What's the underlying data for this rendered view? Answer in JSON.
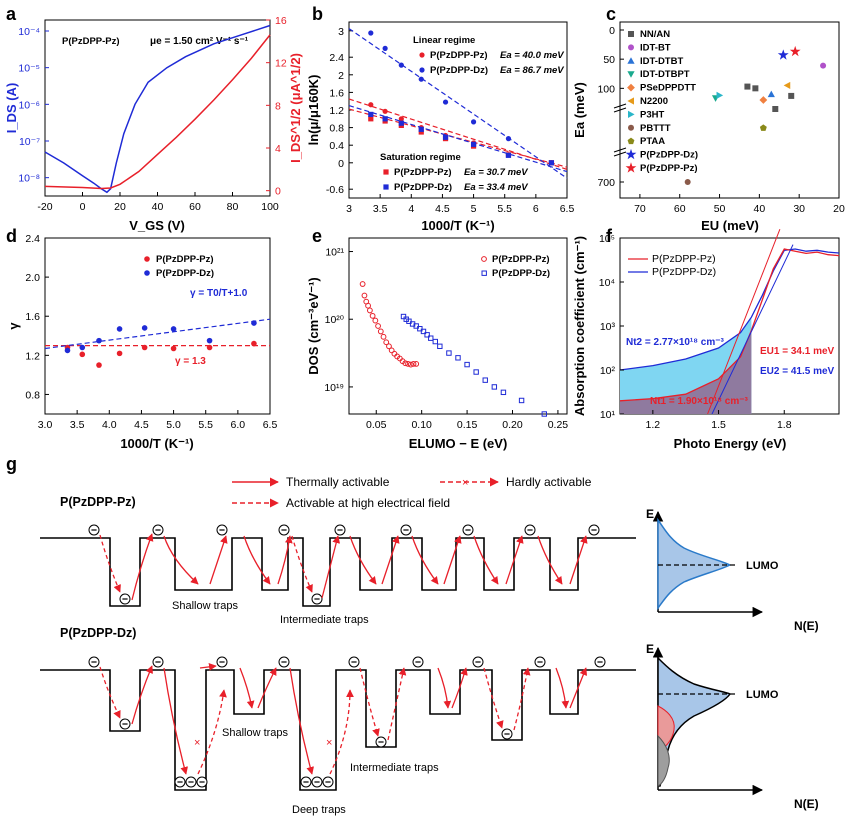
{
  "colors": {
    "red": "#e8202a",
    "blue": "#1f2bd6",
    "black": "#000000",
    "fill_blue": "#a8c6e8",
    "fill_red": "#e99a9a",
    "fill_gray": "#9e9e9e",
    "fill_cyan": "#7fd6f2",
    "fill_purple": "#8f7a9f"
  },
  "panels": {
    "a": {
      "label": "a",
      "title": "P(PzDPP-Pz)",
      "mobility": "μe = 1.50 cm² V⁻¹ s⁻¹",
      "xlabel": "V_GS (V)",
      "ylabel_left": "I_DS (A)",
      "ylabel_right": "I_DS^1/2 (μA^1/2)",
      "xticks": [
        "-20",
        "0",
        "20",
        "40",
        "60",
        "80",
        "100"
      ],
      "yticks_left": [
        "10⁻⁸",
        "10⁻⁷",
        "10⁻⁶",
        "10⁻⁵",
        "10⁻⁴"
      ],
      "yticks_right": [
        "0",
        "4",
        "8",
        "12",
        "16"
      ]
    },
    "b": {
      "label": "b",
      "xlabel": "1000/T (K⁻¹)",
      "ylabel": "ln(μ/μ160K)",
      "xticks": [
        "3",
        "3.5",
        "4",
        "4.5",
        "5",
        "5.5",
        "6",
        "6.5"
      ],
      "yticks": [
        "-0.6",
        "0",
        "0.4",
        "0.8",
        "1.2",
        "1.6",
        "2",
        "2.4",
        "3"
      ],
      "linear_title": "Linear regime",
      "saturation_title": "Saturation regime",
      "legend_linear": [
        {
          "name": "P(PzDPP-Pz)",
          "ea": "Ea = 40.0 meV"
        },
        {
          "name": "P(PzDPP-Dz)",
          "ea": "Ea = 86.7 meV"
        }
      ],
      "legend_sat": [
        {
          "name": "P(PzDPP-Pz)",
          "ea": "Ea = 30.7 meV"
        },
        {
          "name": "P(PzDPP-Dz)",
          "ea": "Ea = 33.4 meV"
        }
      ]
    },
    "c": {
      "label": "c",
      "xlabel": "EU (meV)",
      "ylabel": "Ea (meV)",
      "xticks": [
        "70",
        "60",
        "50",
        "40",
        "30",
        "20"
      ],
      "yticks": [
        "0",
        "50",
        "100",
        "700"
      ],
      "legend": [
        "NN/AN",
        "IDT-BT",
        "IDT-DTBT",
        "IDT-DTBPT",
        "PSeDPPDTT",
        "N2200",
        "P3HT",
        "PBTTT",
        "PTAA",
        "P(PzDPP-Dz)",
        "P(PzDPP-Pz)"
      ]
    },
    "d": {
      "label": "d",
      "xlabel": "1000/T (K⁻¹)",
      "ylabel": "γ",
      "xticks": [
        "3.0",
        "3.5",
        "4.0",
        "4.5",
        "5.0",
        "5.5",
        "6.0",
        "6.5"
      ],
      "yticks": [
        "0.8",
        "1.2",
        "1.6",
        "2.0",
        "2.4"
      ],
      "legend": [
        "P(PzDPP-Pz)",
        "P(PzDPP-Dz)"
      ],
      "fit_blue": "γ = T0/T+1.0",
      "fit_red": "γ = 1.3"
    },
    "e": {
      "label": "e",
      "xlabel": "ELUMO − E (eV)",
      "ylabel": "DOS (cm⁻³eV⁻¹)",
      "xticks": [
        "0.05",
        "0.10",
        "0.15",
        "0.20",
        "0.25"
      ],
      "yticks": [
        "10¹⁹",
        "10²⁰",
        "10²¹"
      ],
      "legend": [
        "P(PzDPP-Pz)",
        "P(PzDPP-Dz)"
      ]
    },
    "f": {
      "label": "f",
      "xlabel": "Photo Energy (eV)",
      "ylabel": "Absorption coefficient (cm⁻¹)",
      "xticks": [
        "1.2",
        "1.5",
        "1.8"
      ],
      "yticks": [
        "10¹",
        "10²",
        "10³",
        "10⁴",
        "10⁵"
      ],
      "legend": [
        "P(PzDPP-Pz)",
        "P(PzDPP-Dz)"
      ],
      "nt2": "Nt2 = 2.77×10¹⁸ cm⁻³",
      "nt1": "Nt1 = 1.90×10¹⁸ cm⁻³",
      "eu1": "EU1 = 34.1 meV",
      "eu2": "EU2 = 41.5 meV"
    },
    "g": {
      "label": "g",
      "legend": [
        "Thermally activable",
        "Hardly activable",
        "Activable at high electrical field"
      ],
      "title_pz": "P(PzDPP-Pz)",
      "title_dz": "P(PzDPP-Dz)",
      "shallow": "Shallow traps",
      "intermediate": "Intermediate traps",
      "deep": "Deep traps",
      "e_axis": "E",
      "n_axis": "N(E)",
      "lumo": "LUMO",
      "electron": "⊖"
    }
  },
  "chart_data": [
    {
      "panel": "a",
      "type": "line",
      "title": "P(PzDPP-Pz) transfer curve",
      "xlabel": "VGS (V)",
      "xlim": [
        -20,
        100
      ],
      "ylabel_left": "IDS (A)",
      "ylim_left_log10": [
        -8.5,
        -3.7
      ],
      "ylabel_right": "IDS^1/2 (μA^1/2)",
      "ylim_right": [
        -0.5,
        16
      ],
      "series": [
        {
          "name": "IDS (log)",
          "axis": "left",
          "color": "blue",
          "x": [
            -20,
            -10,
            0,
            6,
            10,
            13,
            15,
            18,
            22,
            28,
            35,
            45,
            55,
            70,
            85,
            100
          ],
          "log10y": [
            -7.3,
            -7.6,
            -7.95,
            -8.15,
            -8.3,
            -8.4,
            -8.3,
            -7.6,
            -6.8,
            -6.0,
            -5.4,
            -5.0,
            -4.7,
            -4.35,
            -4.1,
            -3.85
          ]
        },
        {
          "name": "IDS^1/2",
          "axis": "right",
          "color": "red",
          "x": [
            -20,
            0,
            10,
            15,
            20,
            30,
            40,
            50,
            60,
            70,
            80,
            90,
            100
          ],
          "y": [
            0.4,
            0.3,
            0.2,
            0.25,
            0.6,
            1.8,
            3.4,
            5.0,
            6.7,
            8.5,
            10.4,
            12.4,
            14.6
          ]
        }
      ]
    },
    {
      "panel": "b",
      "type": "scatter",
      "xlabel": "1000/T (K⁻¹)",
      "xlim": [
        3,
        6.5
      ],
      "ylabel": "ln(μ/μ160K)",
      "ylim": [
        -0.8,
        3.2
      ],
      "series": [
        {
          "name": "Linear P(PzDPP-Pz)",
          "color": "red",
          "marker": "circle",
          "x": [
            3.35,
            3.58,
            3.84,
            4.16,
            4.55,
            5.0,
            5.56,
            6.25
          ],
          "y": [
            1.32,
            1.17,
            1.0,
            0.8,
            0.62,
            0.45,
            0.18,
            0.0
          ],
          "fit": {
            "x": [
              3.0,
              6.5
            ],
            "y": [
              1.45,
              -0.15
            ],
            "style": "dashed"
          }
        },
        {
          "name": "Linear P(PzDPP-Dz)",
          "color": "blue",
          "marker": "circle",
          "x": [
            3.35,
            3.58,
            3.84,
            4.16,
            4.55,
            5.0,
            5.56,
            6.25
          ],
          "y": [
            2.95,
            2.6,
            2.22,
            1.9,
            1.38,
            0.93,
            0.55,
            0.0
          ],
          "fit": {
            "x": [
              3.0,
              6.5
            ],
            "y": [
              3.05,
              -0.35
            ],
            "style": "dashed"
          }
        },
        {
          "name": "Saturation P(PzDPP-Pz)",
          "color": "red",
          "marker": "square",
          "x": [
            3.35,
            3.58,
            3.84,
            4.16,
            4.55,
            5.0,
            5.56,
            6.25
          ],
          "y": [
            1.0,
            0.95,
            0.85,
            0.7,
            0.55,
            0.38,
            0.18,
            0.0
          ],
          "fit": {
            "x": [
              3.0,
              6.5
            ],
            "y": [
              1.22,
              -0.1
            ],
            "style": "dashed"
          }
        },
        {
          "name": "Saturation P(PzDPP-Dz)",
          "color": "blue",
          "marker": "square",
          "x": [
            3.35,
            3.58,
            3.84,
            4.16,
            4.55,
            5.0,
            5.56,
            6.25
          ],
          "y": [
            1.1,
            1.0,
            0.9,
            0.76,
            0.58,
            0.42,
            0.17,
            0.0
          ],
          "fit": {
            "x": [
              3.0,
              6.5
            ],
            "y": [
              1.3,
              -0.2
            ],
            "style": "dashed"
          }
        }
      ]
    },
    {
      "panel": "c",
      "type": "scatter",
      "xlabel": "EU (meV)",
      "xlim": [
        75,
        20
      ],
      "ylabel": "Ea (meV)",
      "points": [
        {
          "name": "NN/AN",
          "eu": 43,
          "ea": 97,
          "marker": "square",
          "color": "#555555"
        },
        {
          "name": "NN/AN",
          "eu": 41,
          "ea": 100,
          "marker": "square",
          "color": "#555555"
        },
        {
          "name": "NN/AN",
          "eu": 36,
          "ea": 122,
          "marker": "square",
          "color": "#555555"
        },
        {
          "name": "NN/AN",
          "eu": 32,
          "ea": 113,
          "marker": "square",
          "color": "#555555"
        },
        {
          "name": "IDT-BT",
          "eu": 24,
          "ea": 61,
          "marker": "circle",
          "color": "#b052c9"
        },
        {
          "name": "IDT-DTBT",
          "eu": 37,
          "ea": 110,
          "marker": "triangle",
          "color": "#2a73d6"
        },
        {
          "name": "IDT-DTBPT",
          "eu": 51,
          "ea": 117,
          "marker": "triangle-down",
          "color": "#1aaa8e"
        },
        {
          "name": "PSeDPPDTT",
          "eu": 39,
          "ea": 120,
          "marker": "diamond",
          "color": "#f08040"
        },
        {
          "name": "N2200",
          "eu": 33,
          "ea": 95,
          "marker": "triangle-left",
          "color": "#e69a1a"
        },
        {
          "name": "P3HT",
          "eu": 50,
          "ea": 112,
          "marker": "triangle-right",
          "color": "#2ab6c9"
        },
        {
          "name": "PBTTT",
          "eu": 58,
          "ea": 700,
          "marker": "circle",
          "color": "#8a5a4a"
        },
        {
          "name": "PTAA",
          "eu": 39,
          "ea": 160,
          "marker": "pentagon",
          "color": "#8a8a1a"
        },
        {
          "name": "P(PzDPP-Dz)",
          "eu": 34,
          "ea": 43,
          "marker": "star",
          "color": "#1f2bd6"
        },
        {
          "name": "P(PzDPP-Pz)",
          "eu": 31,
          "ea": 37,
          "marker": "star",
          "color": "#e8202a"
        }
      ]
    },
    {
      "panel": "d",
      "type": "scatter",
      "xlabel": "1000/T (K⁻¹)",
      "xlim": [
        3.0,
        6.5
      ],
      "ylabel": "γ",
      "ylim": [
        0.6,
        2.4
      ],
      "series": [
        {
          "name": "P(PzDPP-Pz)",
          "color": "red",
          "x": [
            3.35,
            3.58,
            3.84,
            4.16,
            4.55,
            5.0,
            5.56,
            6.25
          ],
          "y": [
            1.28,
            1.21,
            1.1,
            1.22,
            1.28,
            1.27,
            1.28,
            1.32
          ],
          "fit": {
            "x": [
              3.0,
              6.5
            ],
            "y": [
              1.3,
              1.3
            ],
            "style": "dashed"
          }
        },
        {
          "name": "P(PzDPP-Dz)",
          "color": "blue",
          "x": [
            3.35,
            3.58,
            3.84,
            4.16,
            4.55,
            5.0,
            5.56,
            6.25
          ],
          "y": [
            1.25,
            1.28,
            1.35,
            1.47,
            1.48,
            1.47,
            1.35,
            1.53
          ],
          "fit": {
            "x": [
              3.0,
              6.5
            ],
            "y": [
              1.27,
              1.57
            ],
            "style": "dashed"
          }
        }
      ]
    },
    {
      "panel": "e",
      "type": "scatter",
      "xlabel": "ELUMO − E (eV)",
      "xlim": [
        0.02,
        0.26
      ],
      "ylabel": "DOS (cm⁻³eV⁻¹)",
      "ylim_log10": [
        18.6,
        21.2
      ],
      "series": [
        {
          "name": "P(PzDPP-Pz)",
          "color": "red",
          "x": [
            0.035,
            0.037,
            0.039,
            0.041,
            0.043,
            0.046,
            0.049,
            0.052,
            0.055,
            0.058,
            0.061,
            0.064,
            0.067,
            0.07,
            0.073,
            0.076,
            0.079,
            0.082,
            0.085,
            0.088,
            0.091,
            0.094
          ],
          "log10y": [
            20.52,
            20.35,
            20.26,
            20.2,
            20.13,
            20.05,
            19.98,
            19.9,
            19.82,
            19.74,
            19.66,
            19.6,
            19.54,
            19.49,
            19.45,
            19.42,
            19.38,
            19.35,
            19.34,
            19.33,
            19.34,
            19.34
          ]
        },
        {
          "name": "P(PzDPP-Dz)",
          "color": "blue",
          "x": [
            0.08,
            0.083,
            0.086,
            0.09,
            0.094,
            0.098,
            0.102,
            0.106,
            0.11,
            0.115,
            0.12,
            0.13,
            0.14,
            0.15,
            0.16,
            0.17,
            0.18,
            0.19,
            0.21,
            0.235
          ],
          "log10y": [
            20.04,
            20.0,
            19.97,
            19.93,
            19.9,
            19.86,
            19.82,
            19.77,
            19.72,
            19.67,
            19.6,
            19.5,
            19.43,
            19.33,
            19.22,
            19.1,
            19.0,
            18.92,
            18.8,
            18.6
          ]
        }
      ]
    },
    {
      "panel": "f",
      "type": "line",
      "xlabel": "Photo Energy (eV)",
      "xlim": [
        1.05,
        2.05
      ],
      "ylabel": "Absorption coefficient (cm⁻¹)",
      "ylim_log10": [
        1,
        5
      ],
      "series": [
        {
          "name": "P(PzDPP-Pz)",
          "color": "red",
          "x": [
            1.05,
            1.2,
            1.35,
            1.5,
            1.6,
            1.65,
            1.7,
            1.75,
            1.8,
            1.85,
            1.9,
            1.95,
            2.0,
            2.05
          ],
          "log10y": [
            1.3,
            1.35,
            1.45,
            1.8,
            2.3,
            2.9,
            3.6,
            4.3,
            4.75,
            4.7,
            4.65,
            4.68,
            4.62,
            4.6
          ]
        },
        {
          "name": "P(PzDPP-Dz)",
          "color": "blue",
          "x": [
            1.05,
            1.2,
            1.35,
            1.5,
            1.6,
            1.65,
            1.7,
            1.75,
            1.8,
            1.85,
            1.9,
            1.95,
            2.0,
            2.05
          ],
          "log10y": [
            2.0,
            2.1,
            2.25,
            2.5,
            2.85,
            3.2,
            3.7,
            4.25,
            4.72,
            4.75,
            4.7,
            4.72,
            4.68,
            4.66
          ]
        }
      ]
    }
  ]
}
